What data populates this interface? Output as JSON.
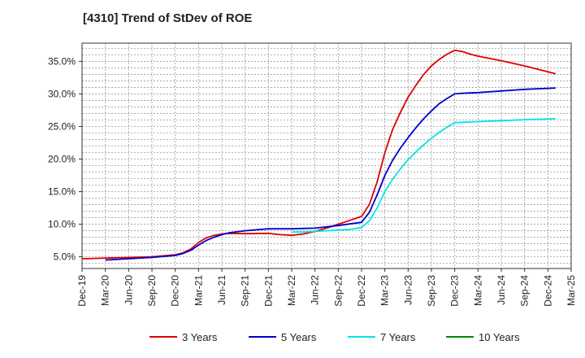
{
  "chart_data": {
    "type": "line",
    "title": "[4310]  Trend of StDev of ROE",
    "xlabel": "",
    "ylabel": "",
    "x_ticks": [
      "Dec-19",
      "Mar-20",
      "Jun-20",
      "Sep-20",
      "Dec-20",
      "Mar-21",
      "Jun-21",
      "Sep-21",
      "Dec-21",
      "Mar-22",
      "Jun-22",
      "Sep-22",
      "Dec-22",
      "Mar-23",
      "Jun-23",
      "Sep-23",
      "Dec-23",
      "Mar-24",
      "Jun-24",
      "Sep-24",
      "Dec-24",
      "Mar-25"
    ],
    "y_ticks": [
      "5.0%",
      "10.0%",
      "15.0%",
      "20.0%",
      "25.0%",
      "30.0%",
      "35.0%"
    ],
    "y_tick_values": [
      5,
      10,
      15,
      20,
      25,
      30,
      35
    ],
    "ylim": [
      3.2,
      37.8
    ],
    "xlim": [
      0,
      21
    ],
    "grid": true,
    "legend_position": "bottom",
    "series": [
      {
        "name": "3 Years",
        "color": "#dd0000",
        "points": [
          [
            0,
            4.7
          ],
          [
            1,
            4.8
          ],
          [
            2,
            4.9
          ],
          [
            3,
            5.0
          ],
          [
            4,
            5.3
          ],
          [
            4.33,
            5.6
          ],
          [
            4.67,
            6.2
          ],
          [
            5,
            7.2
          ],
          [
            5.33,
            7.9
          ],
          [
            5.67,
            8.3
          ],
          [
            6,
            8.5
          ],
          [
            6.33,
            8.6
          ],
          [
            7,
            8.55
          ],
          [
            8,
            8.6
          ],
          [
            8.5,
            8.4
          ],
          [
            9,
            8.3
          ],
          [
            9.5,
            8.5
          ],
          [
            10,
            8.9
          ],
          [
            10.5,
            9.4
          ],
          [
            11,
            10.0
          ],
          [
            11.5,
            10.6
          ],
          [
            12,
            11.2
          ],
          [
            12.33,
            13.0
          ],
          [
            12.67,
            16.5
          ],
          [
            13,
            21.0
          ],
          [
            13.33,
            24.5
          ],
          [
            13.67,
            27.2
          ],
          [
            14,
            29.5
          ],
          [
            14.33,
            31.3
          ],
          [
            14.67,
            33.0
          ],
          [
            15,
            34.3
          ],
          [
            15.33,
            35.3
          ],
          [
            15.67,
            36.1
          ],
          [
            16,
            36.7
          ],
          [
            16.33,
            36.5
          ],
          [
            16.67,
            36.1
          ],
          [
            17,
            35.8
          ],
          [
            18,
            35.1
          ],
          [
            19,
            34.3
          ],
          [
            20,
            33.4
          ],
          [
            20.33,
            33.1
          ]
        ]
      },
      {
        "name": "5 Years",
        "color": "#0000cc",
        "points": [
          [
            1,
            4.5
          ],
          [
            2,
            4.7
          ],
          [
            3,
            4.9
          ],
          [
            4,
            5.2
          ],
          [
            4.33,
            5.5
          ],
          [
            4.67,
            6.0
          ],
          [
            5,
            6.8
          ],
          [
            5.33,
            7.5
          ],
          [
            5.67,
            8.0
          ],
          [
            6,
            8.4
          ],
          [
            6.33,
            8.7
          ],
          [
            7,
            9.0
          ],
          [
            8,
            9.3
          ],
          [
            9,
            9.3
          ],
          [
            10,
            9.4
          ],
          [
            11,
            9.8
          ],
          [
            12,
            10.3
          ],
          [
            12.33,
            11.8
          ],
          [
            12.67,
            14.5
          ],
          [
            13,
            17.5
          ],
          [
            13.33,
            19.8
          ],
          [
            13.67,
            21.7
          ],
          [
            14,
            23.3
          ],
          [
            14.33,
            24.8
          ],
          [
            14.67,
            26.2
          ],
          [
            15,
            27.4
          ],
          [
            15.33,
            28.5
          ],
          [
            15.67,
            29.3
          ],
          [
            16,
            30.0
          ],
          [
            16.33,
            30.1
          ],
          [
            16.67,
            30.15
          ],
          [
            17,
            30.2
          ],
          [
            18,
            30.45
          ],
          [
            19,
            30.7
          ],
          [
            20,
            30.85
          ],
          [
            20.33,
            30.9
          ]
        ]
      },
      {
        "name": "7 Years",
        "color": "#00e5e5",
        "points": [
          [
            9,
            8.8
          ],
          [
            9.5,
            8.8
          ],
          [
            10,
            8.9
          ],
          [
            10.5,
            9.0
          ],
          [
            11,
            9.1
          ],
          [
            11.5,
            9.2
          ],
          [
            12,
            9.5
          ],
          [
            12.33,
            10.5
          ],
          [
            12.67,
            12.5
          ],
          [
            13,
            15.0
          ],
          [
            13.33,
            16.9
          ],
          [
            13.67,
            18.5
          ],
          [
            14,
            19.9
          ],
          [
            14.33,
            21.1
          ],
          [
            14.67,
            22.2
          ],
          [
            15,
            23.2
          ],
          [
            15.33,
            24.1
          ],
          [
            15.67,
            24.9
          ],
          [
            16,
            25.6
          ],
          [
            16.33,
            25.65
          ],
          [
            16.67,
            25.7
          ],
          [
            17,
            25.75
          ],
          [
            18,
            25.9
          ],
          [
            19,
            26.05
          ],
          [
            20,
            26.15
          ],
          [
            20.33,
            26.2
          ]
        ]
      },
      {
        "name": "10 Years",
        "color": "#008800",
        "points": []
      }
    ]
  }
}
